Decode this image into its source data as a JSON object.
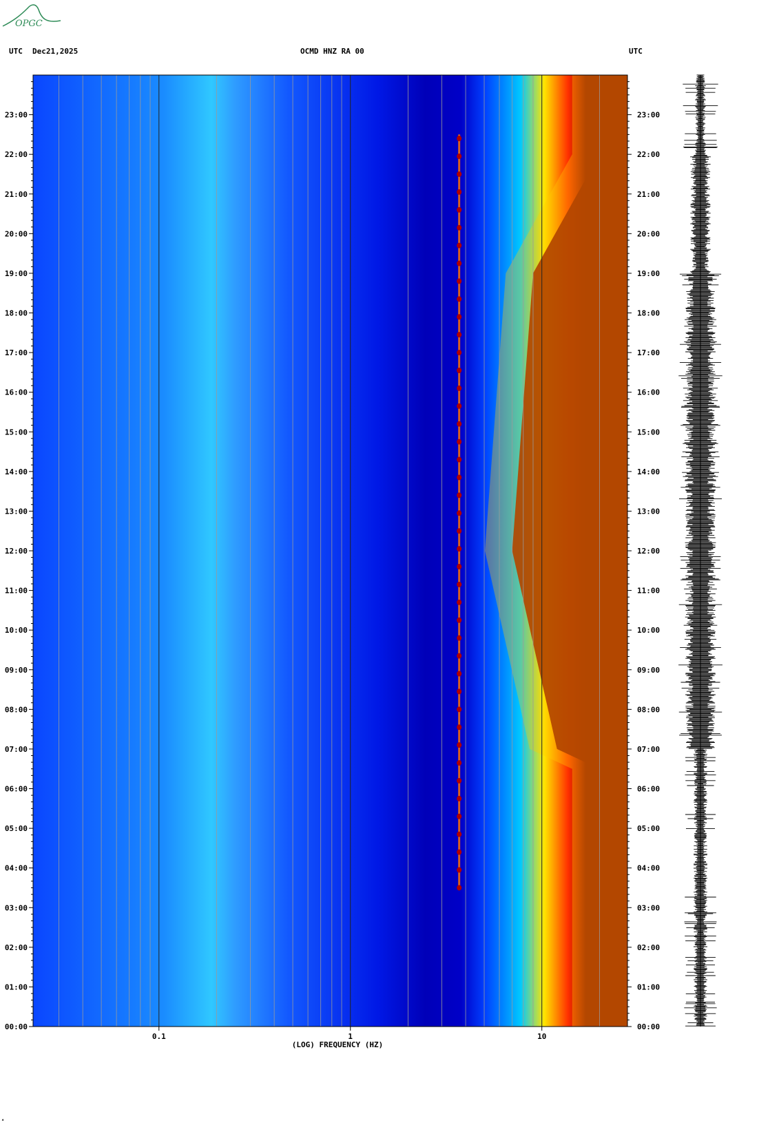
{
  "header": {
    "left_tz": "UTC",
    "date": "Dec21,2025",
    "station": "OCMD HNZ RA 00",
    "right_tz": "UTC"
  },
  "logo": {
    "text": "OPGC",
    "color": "#2e8b57"
  },
  "chart_data": {
    "type": "heatmap",
    "title": "OCMD HNZ RA 00",
    "xlabel": "(LOG) FREQUENCY (HZ)",
    "ylabel": "UTC",
    "x_scale": "log",
    "xlim": [
      0.022,
      28
    ],
    "x_ticks": [
      {
        "value": 0.1,
        "label": "0.1"
      },
      {
        "value": 1,
        "label": "1"
      },
      {
        "value": 10,
        "label": "10"
      }
    ],
    "y_ticks": [
      "00:00",
      "01:00",
      "02:00",
      "03:00",
      "04:00",
      "05:00",
      "06:00",
      "07:00",
      "08:00",
      "09:00",
      "10:00",
      "11:00",
      "12:00",
      "13:00",
      "14:00",
      "15:00",
      "16:00",
      "17:00",
      "18:00",
      "19:00",
      "20:00",
      "21:00",
      "22:00",
      "23:00"
    ],
    "ylim_hours": [
      0,
      24
    ],
    "colormap": [
      "#00008b",
      "#0000ff",
      "#0080ff",
      "#00ffff",
      "#80ff80",
      "#ffff00",
      "#ff8000",
      "#ff0000",
      "#8b0000"
    ],
    "features": {
      "persistent_line_hz": 3.7,
      "persistent_line_hours": [
        3.5,
        22.5
      ],
      "high_energy_edge_hz": {
        "00:00": 20,
        "06:30": 20,
        "07:00": 12,
        "12:00": 7,
        "19:00": 9,
        "22:00": 20
      }
    },
    "grid": true,
    "trace_panel": "seismogram trace, 24 hours"
  }
}
